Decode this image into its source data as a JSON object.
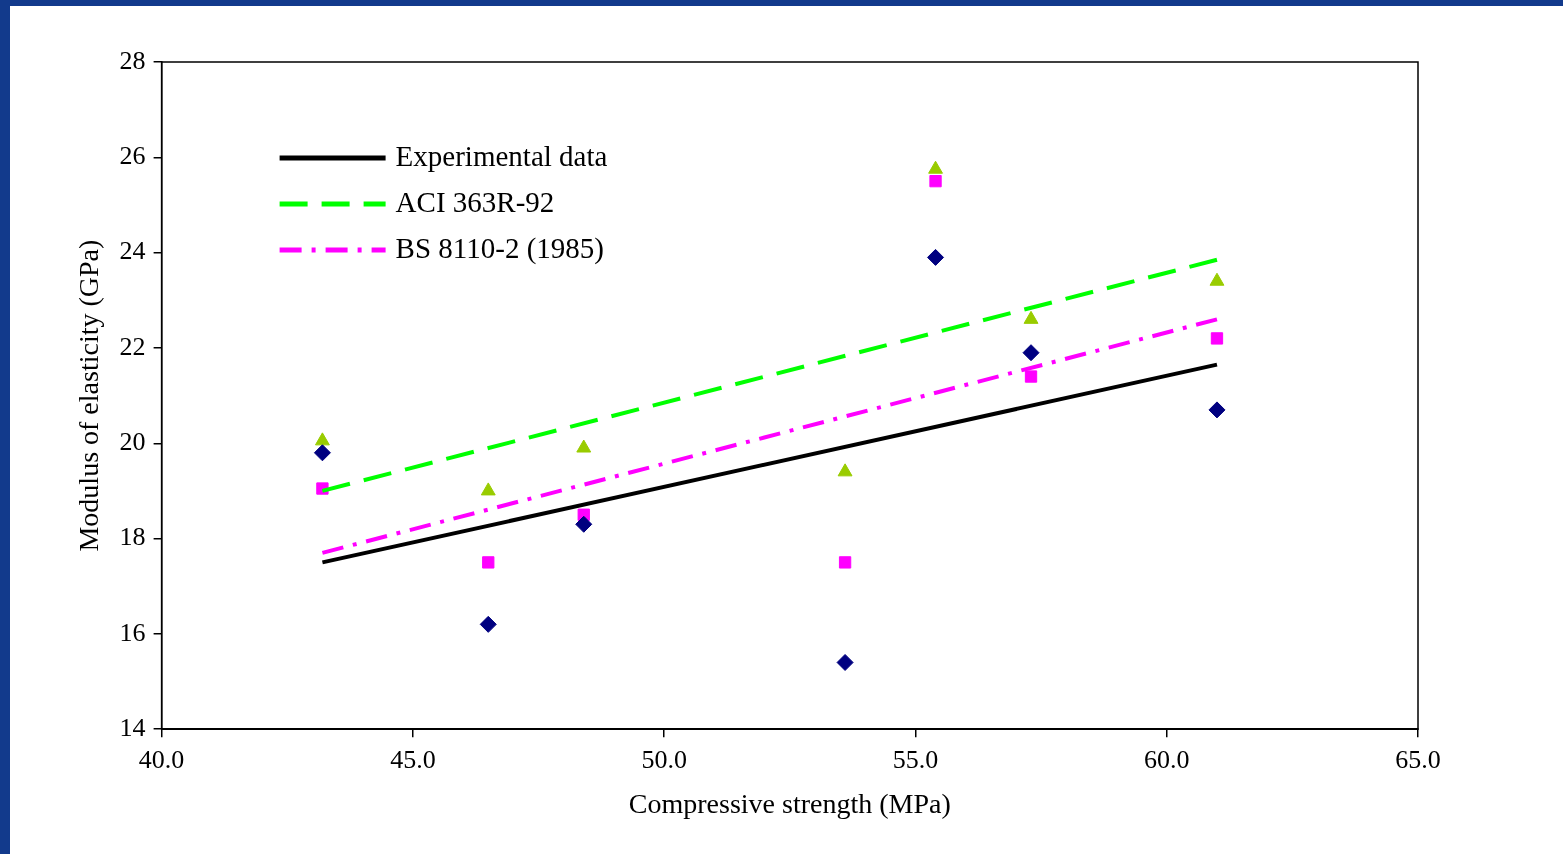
{
  "chart_data": {
    "type": "scatter",
    "xlabel": "Compressive strength (MPa)",
    "ylabel": "Modulus of elasticity (GPa)",
    "xlim": [
      40,
      65
    ],
    "xticks": [
      {
        "value": 40,
        "label": "40.0"
      },
      {
        "value": 45,
        "label": "45.0"
      },
      {
        "value": 50,
        "label": "50.0"
      },
      {
        "value": 55,
        "label": "55.0"
      },
      {
        "value": 60,
        "label": "60.0"
      },
      {
        "value": 65,
        "label": "65.0"
      }
    ],
    "ylim": [
      14,
      28
    ],
    "yticks": [
      14,
      16,
      18,
      20,
      22,
      24,
      26,
      28
    ],
    "grid": false,
    "legend": "top left",
    "series": [
      {
        "name": "Experimental data",
        "type": "line",
        "color": "#000000",
        "line_style": "solid",
        "marker": "none",
        "x": [
          43.2,
          61.0
        ],
        "values": [
          17.5,
          21.65
        ]
      },
      {
        "name": "ACI 363R-92",
        "type": "line",
        "color": "#00ff00",
        "line_style": "dashed",
        "marker": "none",
        "x": [
          43.2,
          61.0
        ],
        "values": [
          19.0,
          23.85
        ]
      },
      {
        "name": "BS 8110-2 (1985)",
        "type": "line",
        "color": "#ff00ff",
        "line_style": "dashdot",
        "marker": "none",
        "x": [
          43.2,
          61.0
        ],
        "values": [
          17.7,
          22.6
        ]
      },
      {
        "type": "scatter",
        "color": "#000080",
        "marker": "diamond",
        "x": [
          43.2,
          46.5,
          48.4,
          53.6,
          55.4,
          57.3,
          61.0
        ],
        "values": [
          19.8,
          16.2,
          18.3,
          15.4,
          23.9,
          21.9,
          20.7
        ]
      },
      {
        "type": "scatter",
        "color": "#99cc00",
        "marker": "triangle",
        "x": [
          43.2,
          46.5,
          48.4,
          53.6,
          55.4,
          57.3,
          61.0
        ],
        "values": [
          20.05,
          19.0,
          19.9,
          19.4,
          25.75,
          22.6,
          23.4
        ]
      },
      {
        "type": "scatter",
        "color": "#ff00ff",
        "marker": "square",
        "x": [
          43.2,
          46.5,
          48.4,
          53.6,
          55.4,
          57.3,
          61.0
        ],
        "values": [
          19.05,
          17.5,
          18.5,
          17.5,
          25.5,
          21.4,
          22.2
        ]
      }
    ]
  }
}
